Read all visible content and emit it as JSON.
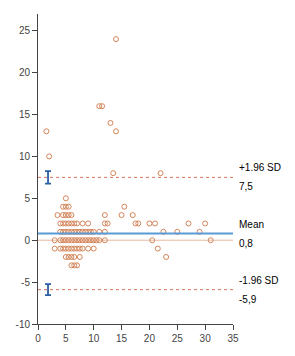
{
  "chart_data": {
    "type": "scatter",
    "x": [
      1.5,
      2,
      3,
      3,
      3.5,
      4,
      4,
      4,
      4,
      4.5,
      4.5,
      4.5,
      4.5,
      4.5,
      4.5,
      5,
      5,
      5,
      5,
      5,
      5,
      5,
      5,
      5.5,
      5.5,
      5.5,
      5.5,
      5.5,
      5.5,
      5.5,
      6,
      6,
      6,
      6,
      6,
      6,
      6,
      6.5,
      6.5,
      6.5,
      6.5,
      6.5,
      6.5,
      7,
      7,
      7,
      7,
      7,
      7.5,
      7.5,
      7.5,
      7.5,
      8,
      8,
      8,
      8,
      8.5,
      8.5,
      9,
      9,
      9,
      9,
      9.5,
      9.5,
      10,
      10,
      10,
      10.5,
      11,
      11,
      11,
      11.5,
      12,
      12,
      12,
      12,
      12.5,
      13,
      13.5,
      14,
      14,
      15,
      15.5,
      17,
      17.5,
      18,
      20,
      20.5,
      21,
      21.5,
      22,
      22.5,
      23,
      25,
      27,
      29,
      30,
      31
    ],
    "values": [
      13,
      10,
      0,
      -1,
      3,
      2,
      1,
      0,
      -1,
      4,
      3,
      2,
      1,
      0,
      -1,
      5,
      4,
      3,
      2,
      1,
      0,
      -1,
      -2,
      4,
      3,
      2,
      1,
      0,
      -1,
      -2,
      3,
      2,
      1,
      0,
      -1,
      -2,
      -3,
      2,
      1,
      0,
      -1,
      -2,
      -3,
      2,
      1,
      0,
      -1,
      -3,
      1,
      0,
      -1,
      -2,
      2,
      1,
      0,
      -1,
      1,
      0,
      2,
      1,
      0,
      -1,
      1,
      0,
      1,
      0,
      -1,
      0,
      16,
      1,
      0,
      16,
      3,
      2,
      1,
      0,
      2,
      14,
      8,
      24,
      13,
      3,
      4,
      3,
      2,
      2,
      2,
      0,
      2,
      -1,
      8,
      1,
      -2,
      1,
      2,
      1,
      2,
      0
    ],
    "color": "#d4855a",
    "marker": "circle-open",
    "lines": [
      {
        "value": 0.8,
        "label": "Mean",
        "value_label": "0,8",
        "color": "#5b9bd5",
        "line_style": "solid"
      },
      {
        "value": 0,
        "color": "#d4855a",
        "line_style": "solid"
      },
      {
        "value": 7.5,
        "label": "+1.96 SD",
        "value_label": "7,5",
        "color": "#d4745a",
        "line_style": "dotted"
      },
      {
        "value": -5.9,
        "label": "-1.96 SD",
        "value_label": "-5,9",
        "color": "#d4745a",
        "line_style": "dotted"
      }
    ],
    "error_bars": [
      {
        "x": 1.8,
        "y": 7.5,
        "error": 0.75,
        "color": "#2b5fa6"
      },
      {
        "x": 1.8,
        "y": -5.9,
        "error": 0.65,
        "color": "#2b5fa6"
      }
    ],
    "xlim": [
      0,
      35
    ],
    "ylim": [
      -10,
      27
    ],
    "xticks": [
      0,
      5,
      10,
      15,
      20,
      25,
      30,
      35
    ],
    "yticks": [
      -10,
      -5,
      0,
      5,
      10,
      15,
      20,
      25
    ],
    "grid": false
  }
}
